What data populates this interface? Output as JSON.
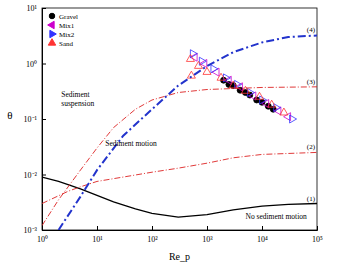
{
  "chart_data": {
    "type": "scatter",
    "x_label": "Re_p",
    "y_label": "θ",
    "log": true,
    "legend": "upper left",
    "xlim": [
      1,
      100000
    ],
    "ylim": [
      0.001,
      10
    ],
    "xticks": [
      {
        "value": 1,
        "label": "10⁰"
      },
      {
        "value": 10,
        "label": "10¹"
      },
      {
        "value": 100,
        "label": "10²"
      },
      {
        "value": 1000,
        "label": "10³"
      },
      {
        "value": 10000,
        "label": "10⁴"
      },
      {
        "value": 100000,
        "label": "10⁵"
      }
    ],
    "yticks": [
      {
        "value": 0.001,
        "label": "10⁻³"
      },
      {
        "value": 0.01,
        "label": "10⁻²"
      },
      {
        "value": 0.1,
        "label": "10⁻¹"
      },
      {
        "value": 1,
        "label": "10⁰"
      },
      {
        "value": 10,
        "label": "10¹"
      }
    ],
    "annotations": [
      "Sediment suspension",
      "Sediment motion",
      "No sediment motion"
    ],
    "series": [
      {
        "name": "Gravel",
        "type": "scatter",
        "marker": "circle",
        "color": "#000000",
        "x": [
          2000,
          2500,
          3000,
          4000,
          5000,
          6000,
          8000,
          10000,
          13000,
          16000
        ],
        "values": [
          0.5,
          0.42,
          0.4,
          0.33,
          0.3,
          0.27,
          0.22,
          0.2,
          0.17,
          0.15
        ]
      },
      {
        "name": "Mix1",
        "type": "scatter",
        "marker": "triangle-left",
        "color": "#cc00cc",
        "x": [
          600,
          900,
          1500,
          2500,
          4000,
          7000,
          12000,
          20000,
          30000
        ],
        "values": [
          1.3,
          1.0,
          0.7,
          0.5,
          0.38,
          0.26,
          0.19,
          0.14,
          0.11
        ]
      },
      {
        "name": "Mix2",
        "type": "scatter",
        "marker": "triangle-right",
        "color": "#3333ff",
        "x": [
          550,
          800,
          1300,
          2200,
          3500,
          6000,
          10000,
          18000,
          35000
        ],
        "values": [
          1.5,
          1.1,
          0.8,
          0.55,
          0.42,
          0.3,
          0.22,
          0.16,
          0.1
        ]
      },
      {
        "name": "Sand",
        "type": "scatter",
        "marker": "triangle-up",
        "color": "#ff3333",
        "x": [
          500,
          520,
          700,
          1000,
          1800,
          3000,
          5000,
          9000,
          15000,
          25000
        ],
        "values": [
          1.2,
          0.6,
          0.9,
          0.7,
          0.55,
          0.4,
          0.32,
          0.25,
          0.18,
          0.13
        ]
      },
      {
        "name": "(1)",
        "type": "line",
        "line_style": "solid",
        "color": "#000000",
        "x": [
          1,
          2,
          5,
          10,
          20,
          50,
          100,
          300,
          1000,
          3000,
          10000,
          30000,
          100000
        ],
        "values": [
          0.009,
          0.0075,
          0.0055,
          0.0042,
          0.0032,
          0.0024,
          0.002,
          0.0017,
          0.0019,
          0.0023,
          0.0027,
          0.0029,
          0.003
        ]
      },
      {
        "name": "(2)",
        "type": "line",
        "line_style": "dashdot",
        "color": "#dd2222",
        "x": [
          1,
          3,
          5,
          10,
          30,
          100,
          300,
          1000,
          3000,
          10000,
          100000
        ],
        "values": [
          0.003,
          0.005,
          0.006,
          0.0075,
          0.009,
          0.011,
          0.013,
          0.016,
          0.02,
          0.023,
          0.025
        ]
      },
      {
        "name": "(3)",
        "type": "line",
        "line_style": "dashdot",
        "color": "#dd2222",
        "x": [
          1,
          2,
          5,
          10,
          20,
          50,
          100,
          300,
          1000,
          10000,
          100000
        ],
        "values": [
          0.0012,
          0.0035,
          0.012,
          0.03,
          0.07,
          0.15,
          0.22,
          0.3,
          0.34,
          0.37,
          0.38
        ]
      },
      {
        "name": "(4)",
        "type": "line",
        "line_style": "dashdot-thick",
        "color": "#2233cc",
        "x": [
          2,
          5,
          10,
          30,
          100,
          300,
          1000,
          3000,
          10000,
          30000,
          100000
        ],
        "values": [
          0.001,
          0.004,
          0.012,
          0.05,
          0.15,
          0.4,
          0.9,
          1.6,
          2.4,
          3.0,
          3.2
        ]
      }
    ]
  }
}
